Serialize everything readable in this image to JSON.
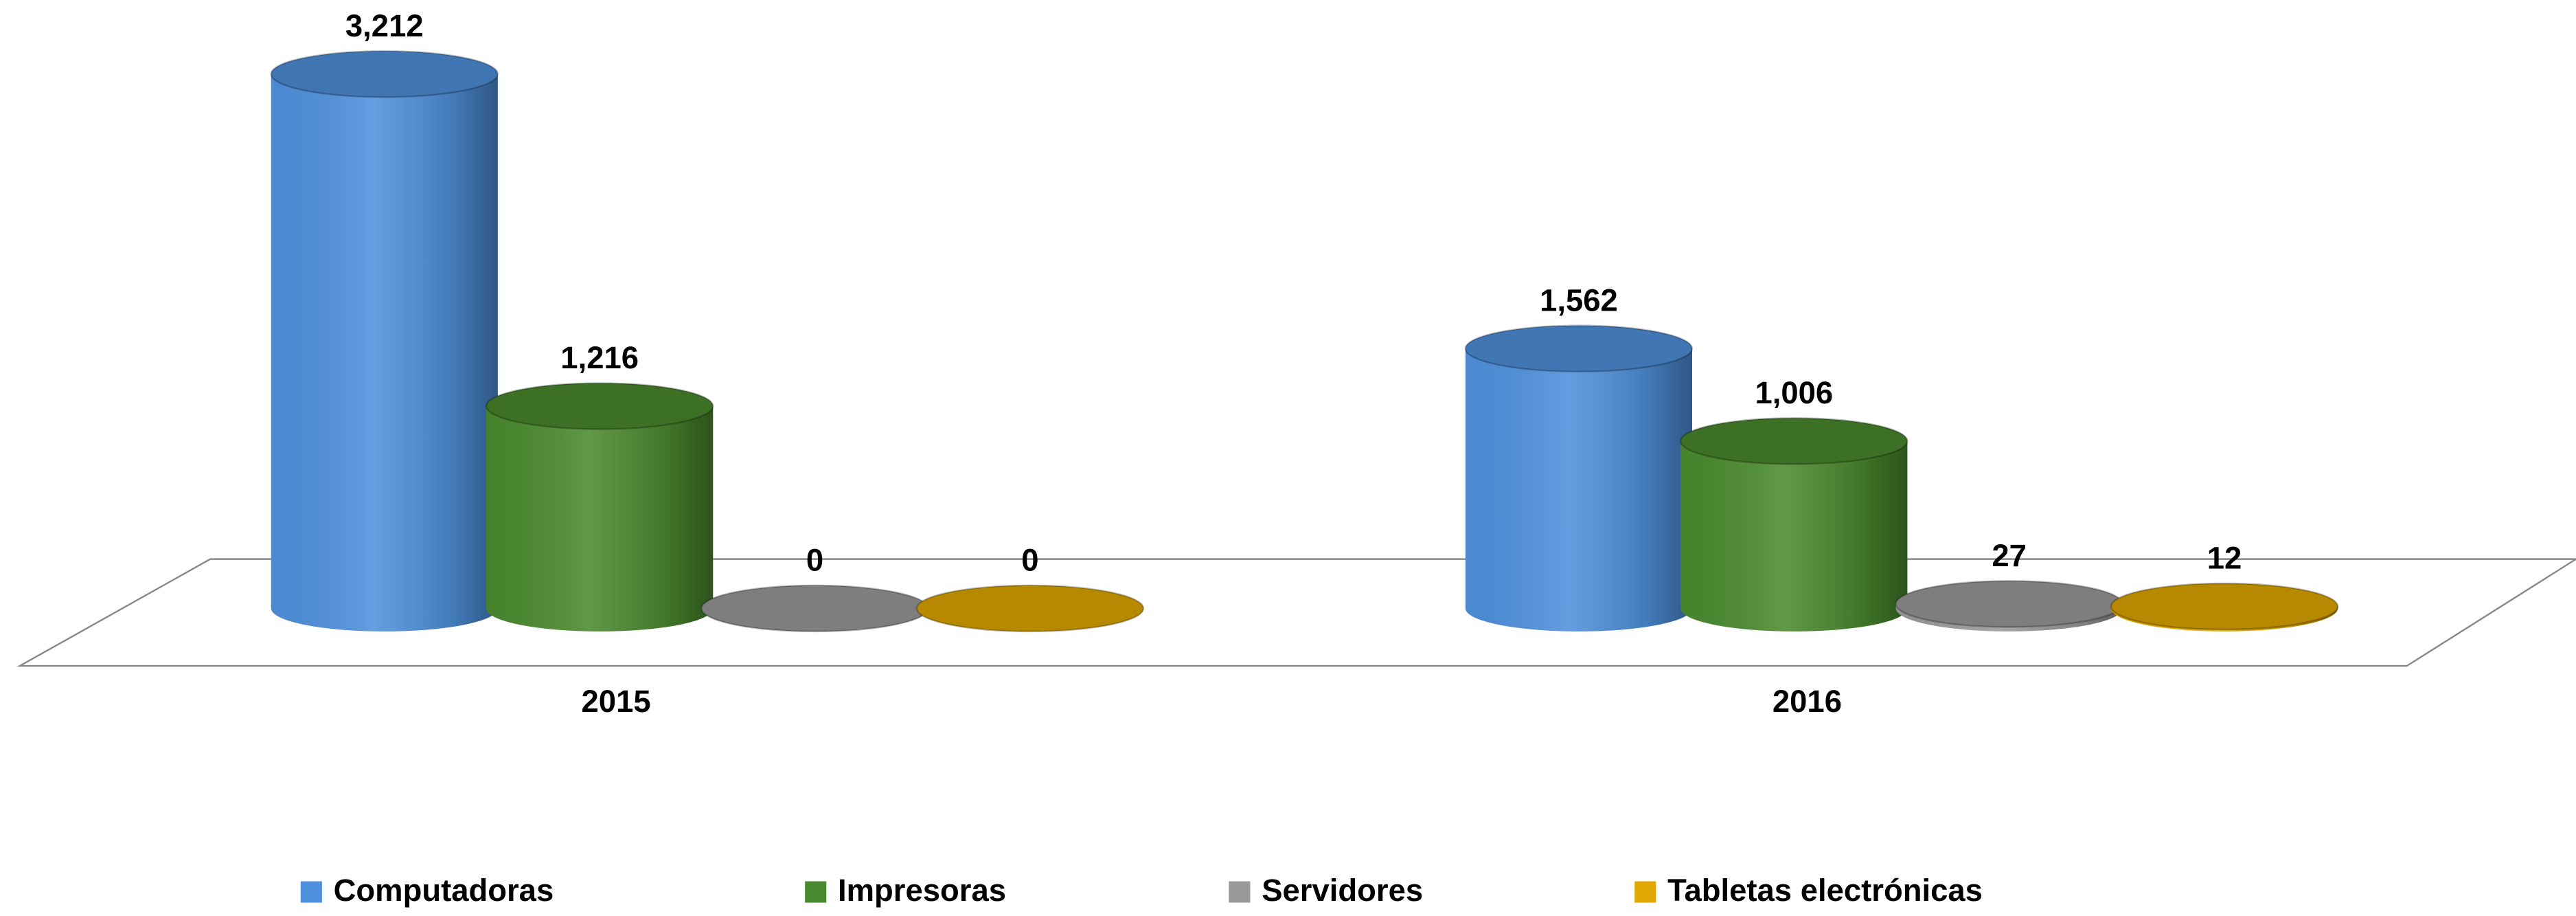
{
  "chart_data": {
    "type": "bar3d",
    "categories": [
      "2015",
      "2016"
    ],
    "series": [
      {
        "name": "Computadoras",
        "color": "#4f90dc",
        "values": [
          3212,
          1562
        ],
        "value_labels": [
          "3,212",
          "1,562"
        ]
      },
      {
        "name": "Impresoras",
        "color": "#4a8a2e",
        "values": [
          1216,
          1006
        ],
        "value_labels": [
          "1,216",
          "1,006"
        ]
      },
      {
        "name": "Servidores",
        "color": "#9a9a9a",
        "values": [
          0,
          27
        ]
      },
      {
        "name": "Tabletas electrónicas",
        "color": "#e0a800",
        "values": [
          0,
          12
        ]
      }
    ],
    "legend": "bottom"
  }
}
